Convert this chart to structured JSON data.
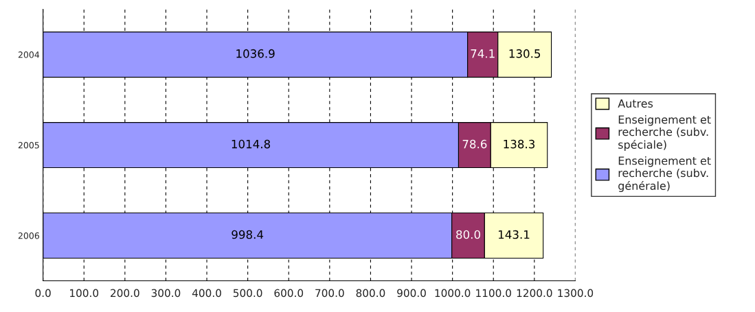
{
  "chart_data": {
    "type": "bar",
    "orientation": "horizontal",
    "stacked": true,
    "categories": [
      "2004",
      "2005",
      "2006"
    ],
    "series": [
      {
        "name": "Enseignement et\nrecherche (subv.\ngénérale)",
        "color": "#9999ff",
        "values": [
          1036.9,
          1014.8,
          998.4
        ],
        "value_labels": [
          "1036.9",
          "1014.8",
          "998.4"
        ]
      },
      {
        "name": "Enseignement et\nrecherche (subv.\nspéciale)",
        "color": "#993366",
        "values": [
          74.1,
          78.6,
          80
        ],
        "value_labels": [
          "74.1",
          "78.6",
          "80.0"
        ]
      },
      {
        "name": "Autres",
        "color": "#ffffcc",
        "values": [
          130.5,
          138.3,
          143.1
        ],
        "value_labels": [
          "130.5",
          "138.3",
          "143.1"
        ]
      }
    ],
    "xlim": [
      0,
      1300
    ],
    "xticks": [
      {
        "value": 0,
        "label": "0.0"
      },
      {
        "value": 100,
        "label": "100.0"
      },
      {
        "value": 200,
        "label": "200.0"
      },
      {
        "value": 300,
        "label": "300.0"
      },
      {
        "value": 400,
        "label": "400.0"
      },
      {
        "value": 500,
        "label": "500.0"
      },
      {
        "value": 600,
        "label": "600.0"
      },
      {
        "value": 700,
        "label": "700.0"
      },
      {
        "value": 800,
        "label": "800.0"
      },
      {
        "value": 900,
        "label": "900.0"
      },
      {
        "value": 1000,
        "label": "1000.0"
      },
      {
        "value": 1100,
        "label": "1100.0"
      },
      {
        "value": 1200,
        "label": "1200.0"
      },
      {
        "value": 1300,
        "label": "1300.0"
      }
    ],
    "grid": "x",
    "legend": "right"
  }
}
